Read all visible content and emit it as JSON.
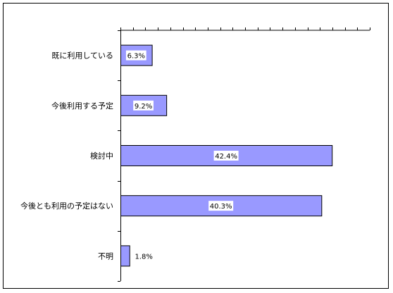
{
  "chart_data": {
    "type": "bar",
    "orientation": "horizontal",
    "categories": [
      "既に利用している",
      "今後利用する予定",
      "検討中",
      "今後とも利用の予定はない",
      "不明"
    ],
    "values": [
      6.3,
      9.2,
      42.4,
      40.3,
      1.8
    ],
    "value_labels": [
      "6.3%",
      "9.2%",
      "42.4%",
      "40.3%",
      "1.8%"
    ],
    "xlim": [
      0,
      50
    ],
    "x_tick_step": 2.5,
    "grid": false,
    "legend": "none",
    "colors": {
      "bar_fill": "#9999ff",
      "bar_stroke": "#000000",
      "axis": "#000000",
      "label_box": "#ffffff"
    }
  }
}
